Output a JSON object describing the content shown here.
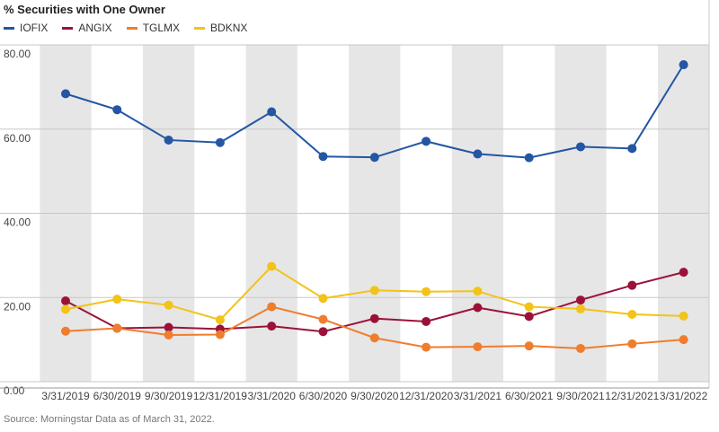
{
  "chart_data": {
    "type": "line",
    "title": "% Securities with One Owner",
    "xlabel": "",
    "ylabel": "",
    "ylim": [
      0,
      80
    ],
    "yticks": [
      "0.00",
      "20.00",
      "40.00",
      "60.00",
      "80.00"
    ],
    "categories": [
      "3/31/2019",
      "6/30/2019",
      "9/30/2019",
      "12/31/2019",
      "3/31/2020",
      "6/30/2020",
      "9/30/2020",
      "12/31/2020",
      "3/31/2021",
      "6/30/2021",
      "9/30/2021",
      "12/31/2021",
      "3/31/2022"
    ],
    "series": [
      {
        "name": "IOFIX",
        "color": "#2356a3",
        "values": [
          68.4,
          64.6,
          57.4,
          56.8,
          64.1,
          53.5,
          53.3,
          57.1,
          54.1,
          53.2,
          55.8,
          55.4,
          75.3
        ]
      },
      {
        "name": "ANGIX",
        "color": "#9b1239",
        "values": [
          19.2,
          12.7,
          12.9,
          12.5,
          13.2,
          11.9,
          15.0,
          14.3,
          17.6,
          15.5,
          19.4,
          22.9,
          26.0
        ]
      },
      {
        "name": "TGLMX",
        "color": "#ef7d2d",
        "values": [
          12.0,
          12.7,
          11.1,
          11.2,
          17.8,
          14.8,
          10.4,
          8.2,
          8.3,
          8.5,
          7.9,
          9.0,
          10.0
        ]
      },
      {
        "name": "BDKNX",
        "color": "#f2c318",
        "values": [
          17.2,
          19.6,
          18.2,
          14.7,
          27.4,
          19.8,
          21.7,
          21.4,
          21.5,
          17.8,
          17.3,
          16.0,
          15.6
        ]
      }
    ],
    "grid": true,
    "legend_position": "top-left"
  },
  "source_note": "Source: Morningstar  Data as of March 31, 2022."
}
